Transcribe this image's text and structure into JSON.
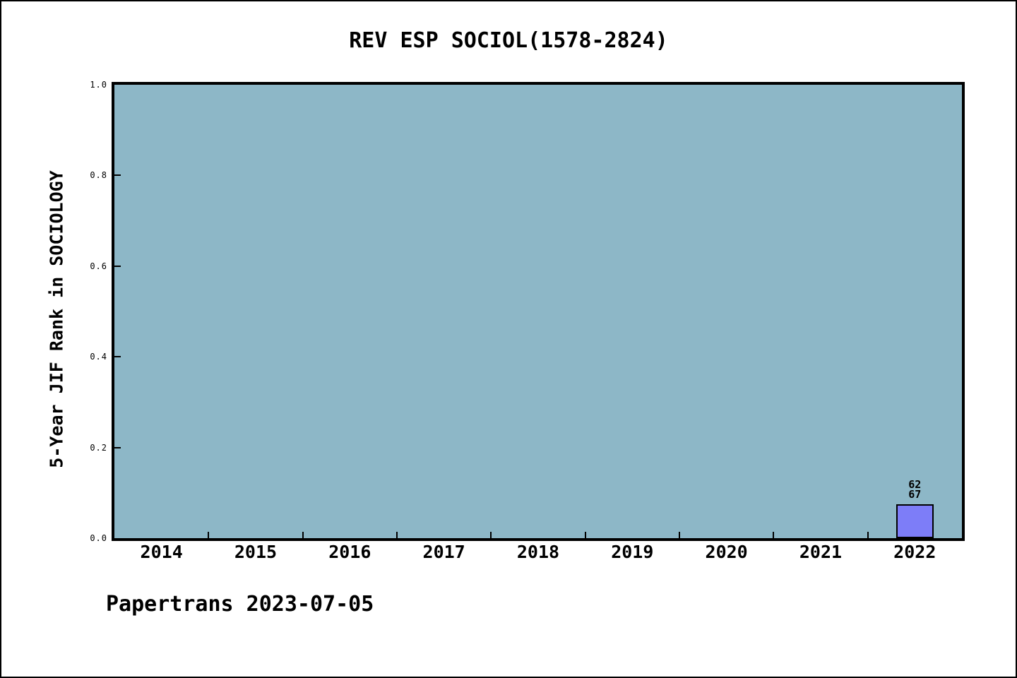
{
  "chart_data": {
    "type": "bar",
    "title": "REV ESP SOCIOL(1578-2824)",
    "xlabel": "",
    "ylabel": "5-Year JIF Rank in SOCIOLOGY",
    "ylim": [
      0.0,
      1.0
    ],
    "grid": false,
    "legend": null,
    "ytick_labels": [
      "1.0",
      "0.8",
      "0.6",
      "0.4",
      "0.2",
      "0.0"
    ],
    "categories": [
      "2014",
      "2015",
      "2016",
      "2017",
      "2018",
      "2019",
      "2020",
      "2021",
      "2022"
    ],
    "values": [
      null,
      null,
      null,
      null,
      null,
      null,
      null,
      null,
      0.0746
    ],
    "annotations": {
      "year": "2022",
      "rank": "62",
      "total": "67"
    }
  },
  "footer": {
    "text": "Papertrans 2023-07-05"
  },
  "colors": {
    "plot_background": "#8db7c7",
    "bar_fill": "#7d7df8",
    "axis": "#000000",
    "text": "#000000"
  }
}
